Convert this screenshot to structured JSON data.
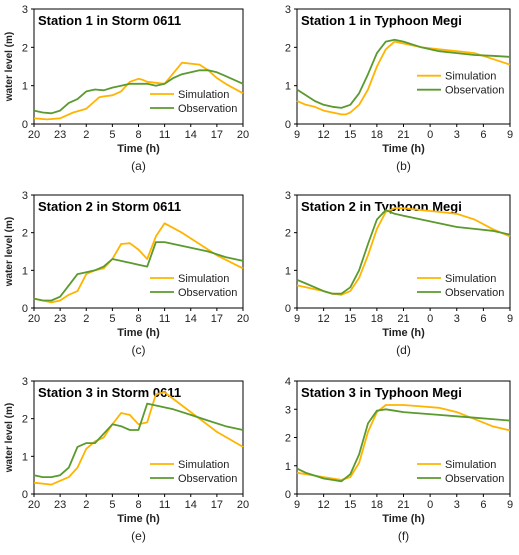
{
  "colors": {
    "simulation": "#FFB400",
    "observation": "#5A9A2E",
    "axis": "#000000"
  },
  "chart_data": [
    {
      "type": "line",
      "panel_label": "(a)",
      "title": "Station 1 in Storm 0611",
      "xlabel": "Time (h)",
      "ylabel": "water level (m)",
      "xticks": [
        "20",
        "23",
        "2",
        "5",
        "8",
        "11",
        "14",
        "17",
        "20"
      ],
      "xlim": [
        0,
        24
      ],
      "ylim": [
        0,
        3
      ],
      "yticks": [
        "0",
        "1",
        "2",
        "3"
      ],
      "legend": "bottom-right",
      "series": [
        {
          "name": "Simulation",
          "color": "#FFB400",
          "x": [
            0,
            1.5,
            3,
            4.5,
            6,
            7,
            7.5,
            8,
            9,
            10,
            11,
            12,
            12.5,
            13,
            15,
            17,
            19,
            20,
            21,
            22,
            24
          ],
          "y": [
            0.15,
            0.12,
            0.15,
            0.3,
            0.4,
            0.6,
            0.7,
            0.72,
            0.75,
            0.85,
            1.1,
            1.18,
            1.15,
            1.1,
            1.05,
            1.6,
            1.55,
            1.4,
            1.2,
            1.05,
            0.8
          ]
        },
        {
          "name": "Observation",
          "color": "#5A9A2E",
          "x": [
            0,
            1,
            2,
            3,
            4,
            5,
            6,
            7,
            8,
            9,
            10,
            11,
            12,
            13,
            14,
            15,
            16,
            17,
            18,
            19,
            20,
            21,
            22,
            23,
            24
          ],
          "y": [
            0.35,
            0.3,
            0.28,
            0.35,
            0.55,
            0.65,
            0.85,
            0.9,
            0.88,
            0.95,
            1.0,
            1.05,
            1.05,
            1.05,
            1.0,
            1.05,
            1.2,
            1.3,
            1.35,
            1.4,
            1.4,
            1.35,
            1.25,
            1.15,
            1.05
          ]
        }
      ]
    },
    {
      "type": "line",
      "panel_label": "(b)",
      "title": "Station 1 in Typhoon Megi",
      "xlabel": "Time (h)",
      "ylabel": "",
      "xticks": [
        "9",
        "12",
        "15",
        "18",
        "21",
        "0",
        "3",
        "6",
        "9"
      ],
      "xlim": [
        0,
        24
      ],
      "ylim": [
        0,
        3
      ],
      "yticks": [
        "0",
        "1",
        "2",
        "3"
      ],
      "legend": "right",
      "series": [
        {
          "name": "Simulation",
          "color": "#FFB400",
          "x": [
            0,
            1,
            2,
            3,
            4,
            5,
            5.5,
            6,
            7,
            8,
            9,
            10,
            11,
            12,
            14,
            16,
            18,
            20,
            22,
            24
          ],
          "y": [
            0.6,
            0.5,
            0.45,
            0.35,
            0.3,
            0.25,
            0.25,
            0.3,
            0.5,
            0.9,
            1.5,
            1.95,
            2.15,
            2.1,
            2.0,
            1.95,
            1.9,
            1.85,
            1.7,
            1.55
          ]
        },
        {
          "name": "Observation",
          "color": "#5A9A2E",
          "x": [
            0,
            1,
            2,
            3,
            4,
            5,
            6,
            7,
            8,
            9,
            10,
            11,
            12,
            14,
            16,
            18,
            20,
            22,
            24
          ],
          "y": [
            0.9,
            0.75,
            0.6,
            0.5,
            0.45,
            0.42,
            0.5,
            0.8,
            1.3,
            1.85,
            2.15,
            2.2,
            2.15,
            2.0,
            1.9,
            1.85,
            1.8,
            1.78,
            1.75
          ]
        }
      ]
    },
    {
      "type": "line",
      "panel_label": "(c)",
      "title": "Station 2 in Storm 0611",
      "xlabel": "Time (h)",
      "ylabel": "water level (m)",
      "xticks": [
        "20",
        "23",
        "2",
        "5",
        "8",
        "11",
        "14",
        "17",
        "20"
      ],
      "xlim": [
        0,
        24
      ],
      "ylim": [
        0,
        3
      ],
      "yticks": [
        "0",
        "1",
        "2",
        "3"
      ],
      "legend": "bottom-right",
      "series": [
        {
          "name": "Simulation",
          "color": "#FFB400",
          "x": [
            0,
            2,
            3,
            4,
            5,
            6,
            7,
            8,
            9,
            10,
            11,
            12,
            13,
            14,
            15,
            17,
            19,
            21,
            24
          ],
          "y": [
            0.25,
            0.15,
            0.2,
            0.35,
            0.45,
            0.9,
            1.0,
            1.05,
            1.3,
            1.7,
            1.72,
            1.55,
            1.3,
            1.9,
            2.25,
            2.0,
            1.7,
            1.4,
            1.05
          ]
        },
        {
          "name": "Observation",
          "color": "#5A9A2E",
          "x": [
            0,
            1,
            2,
            3,
            4,
            5,
            6,
            7,
            8,
            9,
            10,
            11,
            12,
            13,
            14,
            15,
            16,
            18,
            20,
            22,
            24
          ],
          "y": [
            0.25,
            0.2,
            0.2,
            0.3,
            0.6,
            0.9,
            0.95,
            1.0,
            1.1,
            1.3,
            1.25,
            1.2,
            1.15,
            1.1,
            1.75,
            1.75,
            1.7,
            1.6,
            1.5,
            1.35,
            1.25
          ]
        }
      ]
    },
    {
      "type": "line",
      "panel_label": "(d)",
      "title": "Station 2 in Typhoon Megi",
      "xlabel": "Time (h)",
      "ylabel": "",
      "xticks": [
        "9",
        "12",
        "15",
        "18",
        "21",
        "0",
        "3",
        "6",
        "9"
      ],
      "xlim": [
        0,
        24
      ],
      "ylim": [
        0,
        3
      ],
      "yticks": [
        "0",
        "1",
        "2",
        "3"
      ],
      "legend": "bottom-right",
      "series": [
        {
          "name": "Simulation",
          "color": "#FFB400",
          "x": [
            0,
            1,
            2,
            3,
            4,
            5,
            6,
            7,
            8,
            9,
            10,
            11,
            12,
            14,
            16,
            18,
            20,
            22,
            24
          ],
          "y": [
            0.6,
            0.55,
            0.5,
            0.45,
            0.38,
            0.35,
            0.45,
            0.8,
            1.4,
            2.1,
            2.55,
            2.65,
            2.65,
            2.6,
            2.55,
            2.5,
            2.35,
            2.1,
            1.9
          ]
        },
        {
          "name": "Observation",
          "color": "#5A9A2E",
          "x": [
            0,
            1,
            2,
            3,
            4,
            5,
            6,
            7,
            8,
            9,
            10,
            11,
            12,
            14,
            16,
            18,
            20,
            22,
            24
          ],
          "y": [
            0.75,
            0.65,
            0.55,
            0.45,
            0.38,
            0.38,
            0.55,
            1.0,
            1.7,
            2.35,
            2.6,
            2.5,
            2.45,
            2.35,
            2.25,
            2.15,
            2.1,
            2.05,
            1.95
          ]
        }
      ]
    },
    {
      "type": "line",
      "panel_label": "(e)",
      "title": "Station 3 in Storm 0611",
      "xlabel": "Time (h)",
      "ylabel": "water level (m)",
      "xticks": [
        "20",
        "23",
        "2",
        "5",
        "8",
        "11",
        "14",
        "17",
        "20"
      ],
      "xlim": [
        0,
        24
      ],
      "ylim": [
        0,
        3
      ],
      "yticks": [
        "0",
        "1",
        "2",
        "3"
      ],
      "legend": "bottom-right",
      "series": [
        {
          "name": "Simulation",
          "color": "#FFB400",
          "x": [
            0,
            2,
            3,
            4,
            5,
            6,
            7,
            8,
            9,
            10,
            11,
            12,
            13,
            14,
            15,
            17,
            19,
            21,
            24
          ],
          "y": [
            0.3,
            0.25,
            0.35,
            0.45,
            0.7,
            1.2,
            1.4,
            1.5,
            1.85,
            2.15,
            2.1,
            1.85,
            1.9,
            2.65,
            2.7,
            2.35,
            2.0,
            1.65,
            1.25
          ]
        },
        {
          "name": "Observation",
          "color": "#5A9A2E",
          "x": [
            0,
            1,
            2,
            3,
            4,
            5,
            6,
            7,
            8,
            9,
            10,
            11,
            12,
            13,
            14,
            16,
            18,
            20,
            22,
            24
          ],
          "y": [
            0.5,
            0.45,
            0.45,
            0.5,
            0.7,
            1.25,
            1.35,
            1.35,
            1.6,
            1.85,
            1.8,
            1.7,
            1.7,
            2.4,
            2.35,
            2.25,
            2.1,
            1.95,
            1.8,
            1.7
          ]
        }
      ]
    },
    {
      "type": "line",
      "panel_label": "(f)",
      "title": "Station 3 in Typhoon Megi",
      "xlabel": "Time (h)",
      "ylabel": "",
      "xticks": [
        "9",
        "12",
        "15",
        "18",
        "21",
        "0",
        "3",
        "6",
        "9"
      ],
      "xlim": [
        0,
        24
      ],
      "ylim": [
        0,
        4
      ],
      "yticks": [
        "0",
        "1",
        "2",
        "3",
        "4"
      ],
      "legend": "bottom-right",
      "series": [
        {
          "name": "Simulation",
          "color": "#FFB400",
          "x": [
            0,
            1,
            2,
            3,
            4,
            5,
            6,
            7,
            8,
            9,
            10,
            11,
            12,
            14,
            16,
            18,
            20,
            22,
            24
          ],
          "y": [
            0.75,
            0.7,
            0.65,
            0.6,
            0.55,
            0.5,
            0.6,
            1.1,
            2.2,
            2.9,
            3.15,
            3.15,
            3.15,
            3.1,
            3.05,
            2.9,
            2.65,
            2.4,
            2.25
          ]
        },
        {
          "name": "Observation",
          "color": "#5A9A2E",
          "x": [
            0,
            1,
            2,
            3,
            4,
            5,
            6,
            7,
            8,
            9,
            10,
            11,
            12,
            14,
            16,
            18,
            20,
            22,
            24
          ],
          "y": [
            0.9,
            0.75,
            0.65,
            0.55,
            0.5,
            0.45,
            0.7,
            1.4,
            2.5,
            2.95,
            3.0,
            2.95,
            2.9,
            2.85,
            2.8,
            2.75,
            2.7,
            2.65,
            2.6
          ]
        }
      ]
    }
  ]
}
